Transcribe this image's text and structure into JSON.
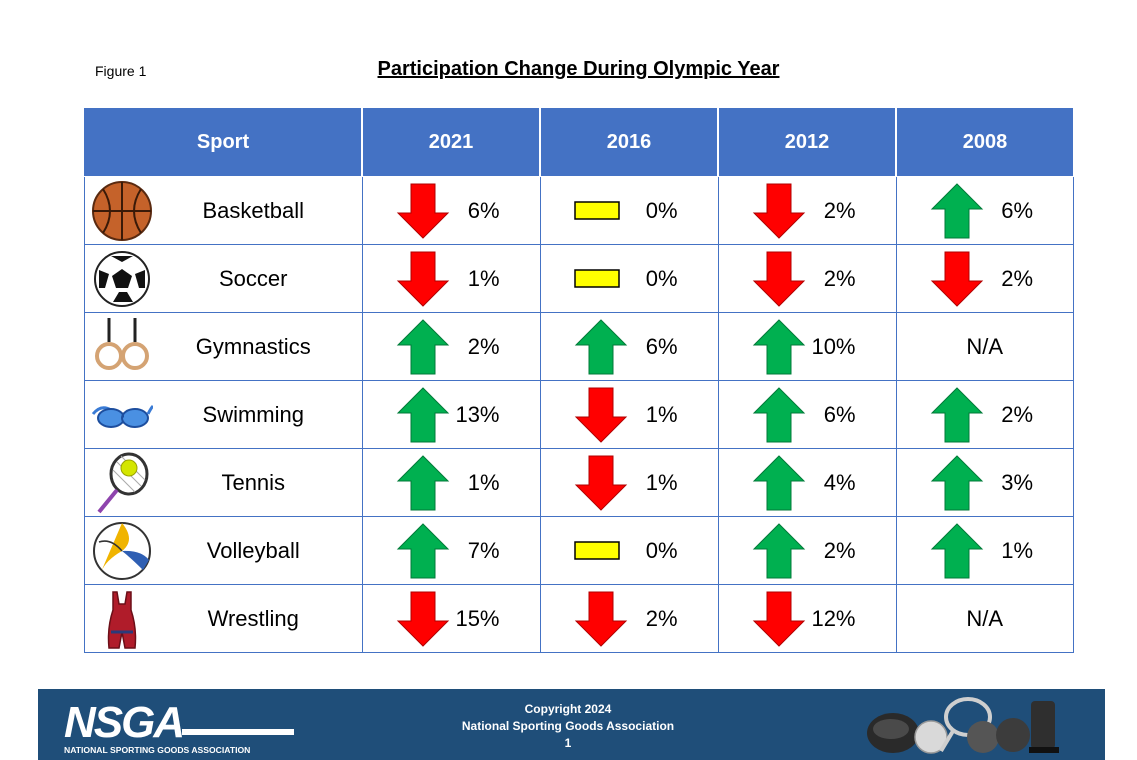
{
  "figure_label": "Figure 1",
  "title": "Participation Change During Olympic Year",
  "table": {
    "headers": [
      "Sport",
      "2021",
      "2016",
      "2012",
      "2008"
    ],
    "rows": [
      {
        "sport": "Basketball",
        "icon": "basketball-icon",
        "cells": [
          {
            "trend": "down",
            "value": "6%"
          },
          {
            "trend": "flat",
            "value": "0%"
          },
          {
            "trend": "down",
            "value": "2%"
          },
          {
            "trend": "up",
            "value": "6%"
          }
        ]
      },
      {
        "sport": "Soccer",
        "icon": "soccer-ball-icon",
        "cells": [
          {
            "trend": "down",
            "value": "1%"
          },
          {
            "trend": "flat",
            "value": "0%"
          },
          {
            "trend": "down",
            "value": "2%"
          },
          {
            "trend": "down",
            "value": "2%"
          }
        ]
      },
      {
        "sport": "Gymnastics",
        "icon": "gymnastic-rings-icon",
        "cells": [
          {
            "trend": "up",
            "value": "2%"
          },
          {
            "trend": "up",
            "value": "6%"
          },
          {
            "trend": "up",
            "value": "10%"
          },
          {
            "trend": "na",
            "value": "N/A"
          }
        ]
      },
      {
        "sport": "Swimming",
        "icon": "swim-goggles-icon",
        "cells": [
          {
            "trend": "up",
            "value": "13%"
          },
          {
            "trend": "down",
            "value": "1%"
          },
          {
            "trend": "up",
            "value": "6%"
          },
          {
            "trend": "up",
            "value": "2%"
          }
        ]
      },
      {
        "sport": "Tennis",
        "icon": "tennis-racket-icon",
        "cells": [
          {
            "trend": "up",
            "value": "1%"
          },
          {
            "trend": "down",
            "value": "1%"
          },
          {
            "trend": "up",
            "value": "4%"
          },
          {
            "trend": "up",
            "value": "3%"
          }
        ]
      },
      {
        "sport": "Volleyball",
        "icon": "volleyball-icon",
        "cells": [
          {
            "trend": "up",
            "value": "7%"
          },
          {
            "trend": "flat",
            "value": "0%"
          },
          {
            "trend": "up",
            "value": "2%"
          },
          {
            "trend": "up",
            "value": "1%"
          }
        ]
      },
      {
        "sport": "Wrestling",
        "icon": "wrestling-singlet-icon",
        "cells": [
          {
            "trend": "down",
            "value": "15%"
          },
          {
            "trend": "down",
            "value": "2%"
          },
          {
            "trend": "down",
            "value": "12%"
          },
          {
            "trend": "na",
            "value": "N/A"
          }
        ]
      }
    ]
  },
  "colors": {
    "header_bg": "#4472c4",
    "up": "#00b050",
    "down": "#ff0000",
    "flat": "#ffff00",
    "footer_bg": "#1f4e79"
  },
  "footer": {
    "logo_text": "NSGA",
    "logo_subtext": "NATIONAL SPORTING GOODS ASSOCIATION",
    "copyright": "Copyright 2024",
    "org": "National Sporting Goods Association",
    "page": "1"
  }
}
